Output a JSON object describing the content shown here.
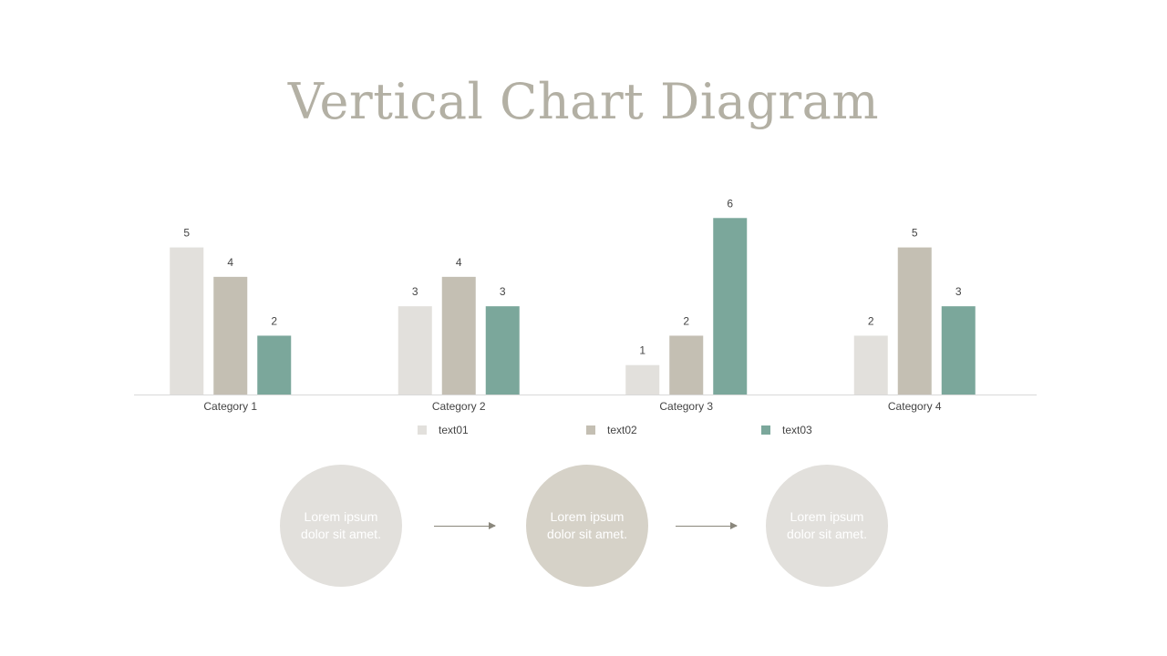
{
  "title": "Vertical Chart Diagram",
  "colors": {
    "text01": "#e2e0dc",
    "text02": "#c4bfb3",
    "text03": "#7ba79b",
    "circle_light": "#e2e0dc",
    "circle_dark": "#d6d2c8",
    "axis": "#d9d9d9",
    "label": "#444444"
  },
  "chart_data": {
    "type": "bar",
    "title": "",
    "categories": [
      "Category 1",
      "Category 2",
      "Category 3",
      "Category 4"
    ],
    "series": [
      {
        "name": "text01",
        "values": [
          5,
          3,
          1,
          2
        ]
      },
      {
        "name": "text02",
        "values": [
          4,
          4,
          2,
          5
        ]
      },
      {
        "name": "text03",
        "values": [
          2,
          3,
          6,
          3
        ]
      }
    ],
    "data_labels": true,
    "legend_position": "bottom",
    "grid": false,
    "ylim": [
      0,
      7
    ]
  },
  "flow": {
    "steps": [
      {
        "text": "Lorem ipsum dolor sit amet."
      },
      {
        "text": "Lorem ipsum dolor sit amet."
      },
      {
        "text": "Lorem ipsum dolor sit amet."
      }
    ]
  }
}
